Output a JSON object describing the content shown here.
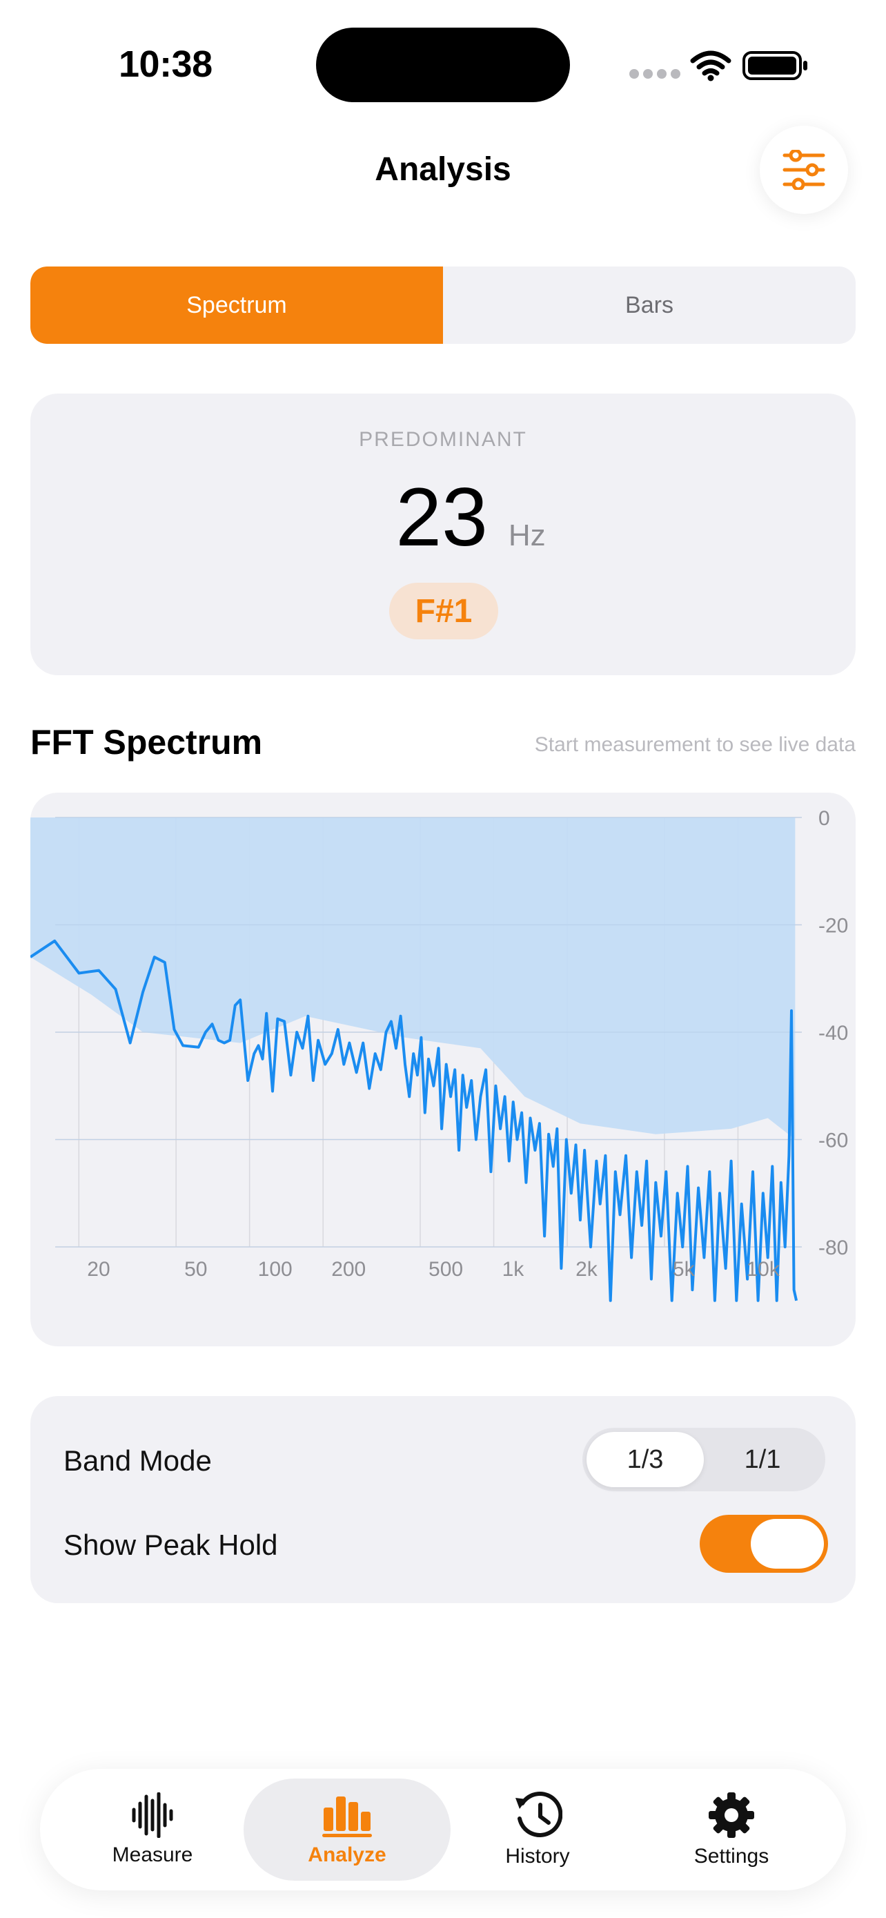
{
  "status_bar": {
    "time": "10:38"
  },
  "header": {
    "title": "Analysis"
  },
  "segments": [
    {
      "label": "Spectrum",
      "active": true
    },
    {
      "label": "Bars",
      "active": false
    }
  ],
  "predominant": {
    "label": "PREDOMINANT",
    "value": "23",
    "unit": "Hz",
    "note": "F#1"
  },
  "fft_section": {
    "title": "FFT Spectrum",
    "hint": "Start measurement to see live data"
  },
  "chart_data": {
    "type": "line",
    "x_scale": "log",
    "x_ticks": [
      {
        "value": 20,
        "label": "20"
      },
      {
        "value": 50,
        "label": "50"
      },
      {
        "value": 100,
        "label": "100"
      },
      {
        "value": 200,
        "label": "200"
      },
      {
        "value": 500,
        "label": "500"
      },
      {
        "value": 1000,
        "label": "1k"
      },
      {
        "value": 2000,
        "label": "2k"
      },
      {
        "value": 5000,
        "label": "5k"
      },
      {
        "value": 10000,
        "label": "10k"
      }
    ],
    "y_ticks": [
      {
        "value": 0,
        "label": "0"
      },
      {
        "value": -20,
        "label": "-20"
      },
      {
        "value": -40,
        "label": "-40"
      },
      {
        "value": -60,
        "label": "-60"
      },
      {
        "value": -80,
        "label": "-80"
      }
    ],
    "xlim": [
      16,
      20000
    ],
    "ylim": [
      -90,
      0
    ],
    "peak_hold": [
      [
        16,
        -26
      ],
      [
        28,
        -33
      ],
      [
        45,
        -40
      ],
      [
        110,
        -42
      ],
      [
        200,
        -37
      ],
      [
        500,
        -41
      ],
      [
        1000,
        -43
      ],
      [
        1500,
        -52
      ],
      [
        2500,
        -57
      ],
      [
        5000,
        -59
      ],
      [
        10000,
        -58
      ],
      [
        14000,
        -56
      ],
      [
        18000,
        -60
      ]
    ],
    "series": [
      {
        "values": [
          [
            16,
            -26
          ],
          [
            20,
            -23
          ],
          [
            25,
            -29
          ],
          [
            30,
            -28.5
          ],
          [
            35,
            -32
          ],
          [
            40,
            -42
          ],
          [
            45,
            -32.5
          ],
          [
            50,
            -26
          ],
          [
            55,
            -27
          ],
          [
            60,
            -39.5
          ],
          [
            65,
            -42.5
          ],
          [
            75,
            -42.8
          ],
          [
            80,
            -40
          ],
          [
            85,
            -38.5
          ],
          [
            90,
            -41.5
          ],
          [
            95,
            -42
          ],
          [
            100,
            -41.5
          ],
          [
            105,
            -35
          ],
          [
            110,
            -34
          ],
          [
            118,
            -49
          ],
          [
            125,
            -44
          ],
          [
            130,
            -42.5
          ],
          [
            135,
            -45
          ],
          [
            140,
            -36.5
          ],
          [
            148,
            -51
          ],
          [
            155,
            -37.5
          ],
          [
            165,
            -38
          ],
          [
            175,
            -48
          ],
          [
            185,
            -40
          ],
          [
            195,
            -43
          ],
          [
            205,
            -37
          ],
          [
            215,
            -49
          ],
          [
            225,
            -41.5
          ],
          [
            240,
            -46
          ],
          [
            255,
            -44
          ],
          [
            270,
            -39.5
          ],
          [
            285,
            -46
          ],
          [
            300,
            -42
          ],
          [
            320,
            -47.5
          ],
          [
            340,
            -42
          ],
          [
            360,
            -50.5
          ],
          [
            380,
            -44
          ],
          [
            400,
            -47
          ],
          [
            420,
            -40
          ],
          [
            440,
            -38
          ],
          [
            460,
            -43
          ],
          [
            480,
            -37
          ],
          [
            500,
            -46
          ],
          [
            520,
            -52
          ],
          [
            540,
            -44
          ],
          [
            560,
            -48
          ],
          [
            580,
            -41
          ],
          [
            600,
            -55
          ],
          [
            620,
            -45
          ],
          [
            650,
            -50
          ],
          [
            680,
            -43
          ],
          [
            700,
            -58
          ],
          [
            730,
            -46
          ],
          [
            760,
            -52
          ],
          [
            790,
            -47
          ],
          [
            820,
            -62
          ],
          [
            850,
            -48
          ],
          [
            880,
            -54
          ],
          [
            920,
            -49
          ],
          [
            960,
            -60
          ],
          [
            1000,
            -52
          ],
          [
            1050,
            -47
          ],
          [
            1100,
            -66
          ],
          [
            1150,
            -50
          ],
          [
            1200,
            -58
          ],
          [
            1250,
            -52
          ],
          [
            1300,
            -64
          ],
          [
            1350,
            -53
          ],
          [
            1400,
            -60
          ],
          [
            1460,
            -55
          ],
          [
            1520,
            -68
          ],
          [
            1580,
            -56
          ],
          [
            1650,
            -62
          ],
          [
            1720,
            -57
          ],
          [
            1800,
            -78
          ],
          [
            1870,
            -59
          ],
          [
            1950,
            -65
          ],
          [
            2020,
            -58
          ],
          [
            2100,
            -84
          ],
          [
            2200,
            -60
          ],
          [
            2300,
            -70
          ],
          [
            2400,
            -61
          ],
          [
            2500,
            -75
          ],
          [
            2600,
            -62
          ],
          [
            2750,
            -80
          ],
          [
            2900,
            -64
          ],
          [
            3000,
            -72
          ],
          [
            3150,
            -63
          ],
          [
            3300,
            -90
          ],
          [
            3450,
            -66
          ],
          [
            3600,
            -74
          ],
          [
            3800,
            -63
          ],
          [
            4000,
            -82
          ],
          [
            4200,
            -66
          ],
          [
            4400,
            -76
          ],
          [
            4600,
            -64
          ],
          [
            4800,
            -86
          ],
          [
            5000,
            -68
          ],
          [
            5250,
            -78
          ],
          [
            5500,
            -66
          ],
          [
            5800,
            -90
          ],
          [
            6100,
            -70
          ],
          [
            6400,
            -80
          ],
          [
            6700,
            -65
          ],
          [
            7000,
            -88
          ],
          [
            7400,
            -69
          ],
          [
            7800,
            -82
          ],
          [
            8200,
            -66
          ],
          [
            8600,
            -90
          ],
          [
            9000,
            -70
          ],
          [
            9500,
            -84
          ],
          [
            10000,
            -64
          ],
          [
            10500,
            -90
          ],
          [
            11000,
            -72
          ],
          [
            11600,
            -86
          ],
          [
            12200,
            -66
          ],
          [
            12800,
            -90
          ],
          [
            13400,
            -70
          ],
          [
            14000,
            -82
          ],
          [
            14600,
            -65
          ],
          [
            15200,
            -90
          ],
          [
            15800,
            -68
          ],
          [
            16400,
            -80
          ],
          [
            17000,
            -63
          ],
          [
            17400,
            -36
          ],
          [
            17800,
            -88
          ],
          [
            18200,
            -90
          ]
        ]
      }
    ]
  },
  "options": {
    "band_mode_label": "Band Mode",
    "band_options": [
      "1/3",
      "1/1"
    ],
    "band_selected": "1/3",
    "peak_hold_label": "Show Peak Hold",
    "peak_hold_on": true
  },
  "tabs": [
    {
      "label": "Measure",
      "icon": "waveform-icon",
      "active": false
    },
    {
      "label": "Analyze",
      "icon": "bar-chart-icon",
      "active": true
    },
    {
      "label": "History",
      "icon": "history-icon",
      "active": false
    },
    {
      "label": "Settings",
      "icon": "gear-icon",
      "active": false
    }
  ],
  "colors": {
    "accent": "#f5820d",
    "spectrum_line": "#1a8cf0",
    "peak_fill": "#c3dcf6"
  }
}
